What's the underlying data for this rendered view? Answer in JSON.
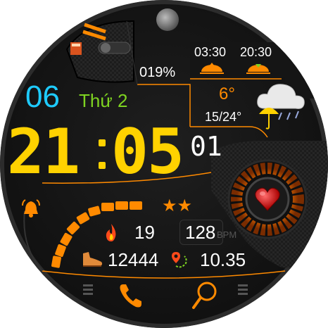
{
  "date": {
    "day": "06",
    "weekday": "Thứ 2"
  },
  "time": {
    "hours": "21",
    "minutes": "05",
    "seconds": "01"
  },
  "battery": {
    "percent": "019%",
    "level": 0.19
  },
  "sun": {
    "sunrise": "03:30",
    "sunset": "20:30"
  },
  "weather": {
    "temp": "6°",
    "range": "15/24°",
    "icon": "cloud-rain-umbrella-icon"
  },
  "stats": {
    "calories": "19",
    "heart_rate": "128",
    "heart_unit": "BPM",
    "steps": "12444",
    "distance": "10.35",
    "rating_stars": 2
  },
  "icons": {
    "moon": "moon-phase-icon",
    "alarm": "alarm-bell-icon",
    "heart": "heart-icon",
    "fire": "flame-icon",
    "steps": "shoe-icon",
    "distance": "route-pin-icon",
    "phone": "phone-icon",
    "search": "search-icon",
    "menu_left": "menu-icon",
    "menu_right": "menu-icon"
  },
  "colors": {
    "accent": "#ff8a00",
    "yellow": "#ffd200",
    "cyan": "#1ecbff",
    "green": "#7ed321",
    "white": "#ffffff"
  }
}
